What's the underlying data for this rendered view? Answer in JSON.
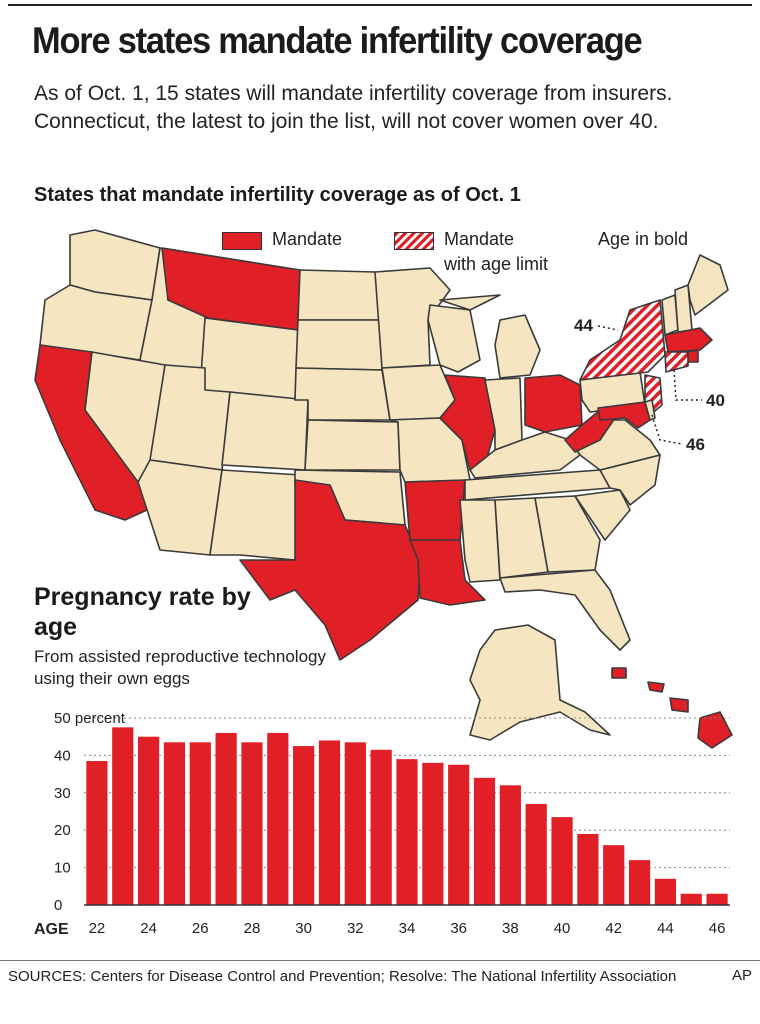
{
  "title": "More states mandate infertility coverage",
  "intro": "As of Oct. 1, 15 states will mandate infertility coverage from insurers. Connecticut, the latest to join the list, will not cover women over 40.",
  "map": {
    "title": "States that mandate infertility coverage as of Oct. 1",
    "legend": {
      "mandate": "Mandate",
      "mandate_age_line1": "Mandate",
      "mandate_age_line2": "with age limit",
      "age_note": "Age in bold"
    },
    "callouts": {
      "ny": "44",
      "ct": "40",
      "nj": "46"
    },
    "colors": {
      "land": "#f5e6c1",
      "mandate": "#e11f26",
      "border": "#3a3a3a"
    }
  },
  "pregnancy": {
    "title": "Pregnancy rate by age",
    "subtitle": "From assisted reproductive technology using their own eggs"
  },
  "chart_data": {
    "type": "bar",
    "xlabel": "AGE",
    "ylabel": "",
    "ylim": [
      0,
      50
    ],
    "yticks": [
      0,
      10,
      20,
      30,
      40,
      50
    ],
    "ytick_labels": [
      "0",
      "10",
      "20",
      "30",
      "40",
      "50 percent"
    ],
    "categories": [
      22,
      23,
      24,
      25,
      26,
      27,
      28,
      29,
      30,
      31,
      32,
      33,
      34,
      35,
      36,
      37,
      38,
      39,
      40,
      41,
      42,
      43,
      44,
      45,
      46
    ],
    "xtick_labels": [
      "22",
      "24",
      "26",
      "28",
      "30",
      "32",
      "34",
      "36",
      "38",
      "40",
      "42",
      "44",
      "46"
    ],
    "values": [
      38.5,
      47.5,
      45,
      43.5,
      43.5,
      46,
      43.5,
      46,
      42.5,
      44,
      43.5,
      41.5,
      39,
      38,
      37.5,
      34,
      32,
      27,
      23.5,
      19,
      16,
      12,
      7,
      3,
      3
    ],
    "grid": true,
    "bar_color": "#e11f26"
  },
  "footer": {
    "sources": "SOURCES: Centers for Disease Control and Prevention; Resolve: The National Infertility Association",
    "credit": "AP"
  }
}
